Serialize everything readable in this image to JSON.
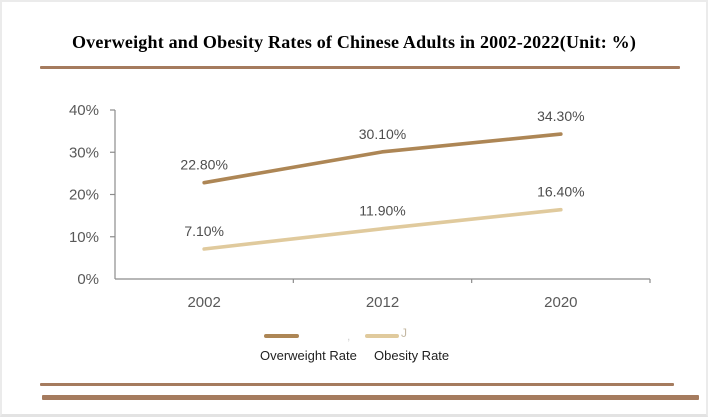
{
  "chart_data": {
    "type": "line",
    "title": "Overweight and Obesity Rates of Chinese Adults in 2002-2022(Unit: %)",
    "categories": [
      "2002",
      "2012",
      "2020"
    ],
    "series": [
      {
        "name": "Overweight Rate",
        "color": "#ad8655",
        "values": [
          22.8,
          30.1,
          34.3
        ],
        "labels": [
          "22.80%",
          "30.10%",
          "34.30%"
        ]
      },
      {
        "name": "Obesity Rate",
        "color": "#e0ca9d",
        "values": [
          7.1,
          11.9,
          16.4
        ],
        "labels": [
          "7.10%",
          "11.90%",
          "16.40%"
        ]
      }
    ],
    "xlabel": "",
    "ylabel": "",
    "ylim": [
      0,
      40
    ],
    "yticks": [
      "0%",
      "10%",
      "20%",
      "30%",
      "40%"
    ],
    "grid": false,
    "legend_position": "bottom",
    "axis_color": "#8c8c8c",
    "tick_label_color": "#595959",
    "data_label_color": "#4d4d4d"
  },
  "decor": {
    "divider_color": "#a57b5e"
  },
  "legend": {
    "stray_mark_mid": ",",
    "stray_mark_end": "J",
    "stray_mark_color": "#c4b8a2"
  }
}
